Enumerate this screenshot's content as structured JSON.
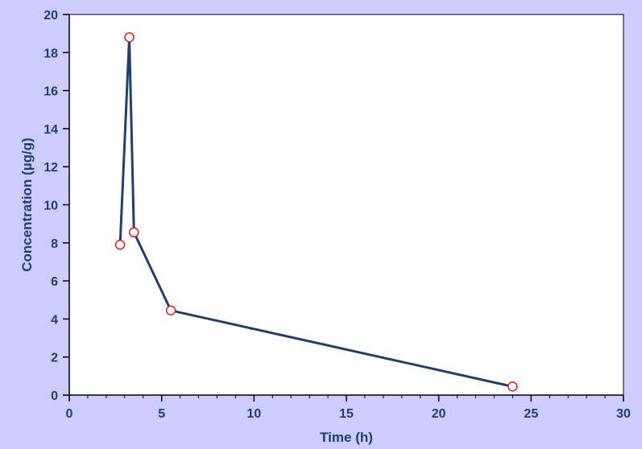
{
  "colors": {
    "background": "#ccccff",
    "plot_area": "#ffffff",
    "axis": "#000000",
    "text": "#1f3f73",
    "line": "#1f3f73",
    "marker_edge": "#e02020",
    "marker_fill": "#ffffff"
  },
  "chart_data": {
    "type": "line",
    "title": "",
    "xlabel": "Time (h)",
    "ylabel": "Concentration (µg/g)",
    "xlim": [
      0,
      30
    ],
    "ylim": [
      0,
      20
    ],
    "xticks": [
      0,
      5,
      10,
      15,
      20,
      25,
      30
    ],
    "yticks": [
      0,
      2,
      4,
      6,
      8,
      10,
      12,
      14,
      16,
      18,
      20
    ],
    "x_minor_step": 1,
    "grid": false,
    "legend": "none",
    "series": [
      {
        "x": [
          2.75,
          3.25,
          3.5,
          5.5,
          24
        ],
        "y": [
          7.9,
          18.8,
          8.55,
          4.45,
          0.45
        ]
      }
    ]
  }
}
